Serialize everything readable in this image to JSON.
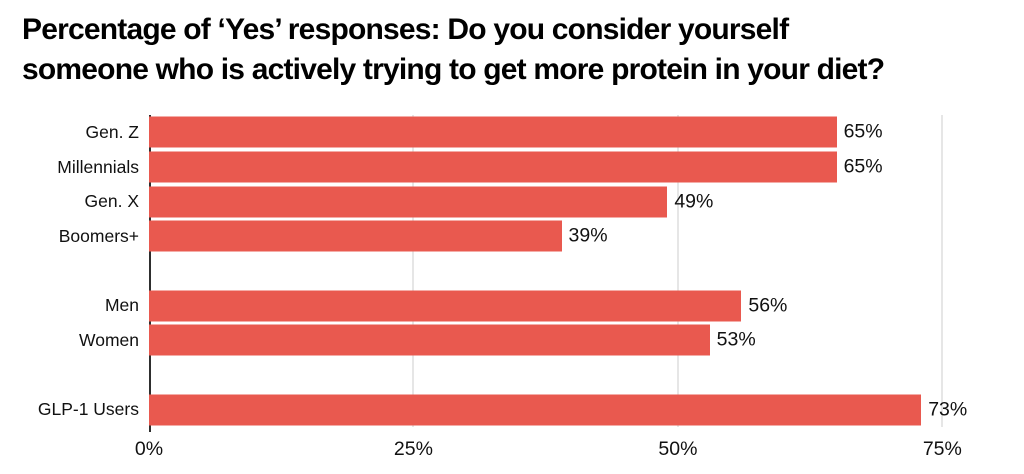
{
  "title": {
    "full": "Percentage of ‘Yes’ responses: Do you consider yourself someone who is actively trying to get more protein in your diet?",
    "line1": "Percentage of ‘Yes’ responses: Do you consider yourself",
    "line2": "someone who is actively trying to get more protein in your diet?"
  },
  "chart_data": {
    "type": "bar",
    "orientation": "horizontal",
    "title": "Percentage of ‘Yes’ responses: Do you consider yourself someone who is actively trying to get more protein in your diet?",
    "categories": [
      "Gen. Z",
      "Millennials",
      "Gen. X",
      "Boomers+",
      "Men",
      "Women",
      "GLP-1 Users"
    ],
    "values": [
      65,
      65,
      49,
      39,
      56,
      53,
      73
    ],
    "rows": [
      {
        "label": "Gen. Z",
        "value": 65,
        "value_label": "65%"
      },
      {
        "label": "Millennials",
        "value": 65,
        "value_label": "65%"
      },
      {
        "label": "Gen. X",
        "value": 49,
        "value_label": "49%"
      },
      {
        "label": "Boomers+",
        "value": 39,
        "value_label": "39%"
      },
      {
        "label": "",
        "value": null,
        "value_label": ""
      },
      {
        "label": "Men",
        "value": 56,
        "value_label": "56%"
      },
      {
        "label": "Women",
        "value": 53,
        "value_label": "53%"
      },
      {
        "label": "",
        "value": null,
        "value_label": ""
      },
      {
        "label": "GLP-1 Users",
        "value": 73,
        "value_label": "73%"
      }
    ],
    "x_ticks": [
      {
        "value": 0,
        "label": "0%"
      },
      {
        "value": 25,
        "label": "25%"
      },
      {
        "value": 50,
        "label": "50%"
      },
      {
        "value": 75,
        "label": "75%"
      }
    ],
    "xlim": [
      0,
      81.3
    ],
    "xlabel": "",
    "ylabel": "",
    "grid": "vertical-light",
    "legend": "none",
    "bar_color": "#e9594f",
    "gridline_color": "#e6e6e6",
    "axis_line_color": "#2e2e2e",
    "text_color": "#111111"
  }
}
